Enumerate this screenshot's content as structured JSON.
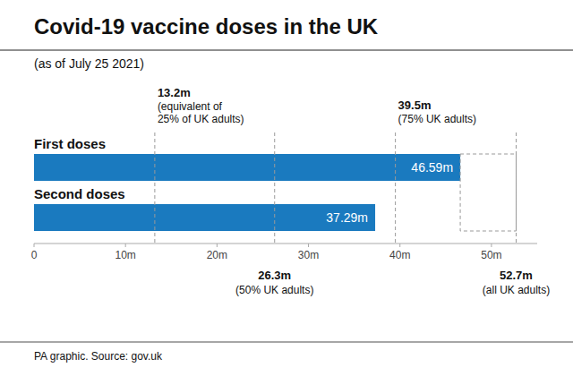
{
  "chart_data": {
    "type": "bar",
    "orientation": "horizontal",
    "title": "Covid-19 vaccine doses in the UK",
    "subtitle": "(as of July 25 2021)",
    "categories": [
      "First doses",
      "Second doses"
    ],
    "values": [
      46.59,
      37.29
    ],
    "value_labels": [
      "46.59m",
      "37.29m"
    ],
    "data_labels": true,
    "color": "#1a7abf",
    "xlim": [
      0,
      55
    ],
    "xticks": [
      0,
      {
        "value": 10,
        "label": "10m"
      },
      {
        "value": 20,
        "label": "20m"
      },
      {
        "value": 30,
        "label": "30m"
      },
      {
        "value": 40,
        "label": "40m"
      },
      {
        "value": 50,
        "label": "50m"
      }
    ],
    "grid": false,
    "annotations": [
      {
        "x": 13.2,
        "label": "13.2m",
        "text": "(equivalent of\n25% of UK adults)"
      },
      {
        "x": 26.3,
        "label": "26.3m",
        "text": "(50% UK adults)"
      },
      {
        "x": 39.5,
        "label": "39.5m",
        "text": "(75% UK adults)"
      },
      {
        "x": 52.7,
        "label": "52.7m",
        "text": "(all UK adults)"
      }
    ],
    "source": "PA graphic. Source: gov.uk"
  }
}
